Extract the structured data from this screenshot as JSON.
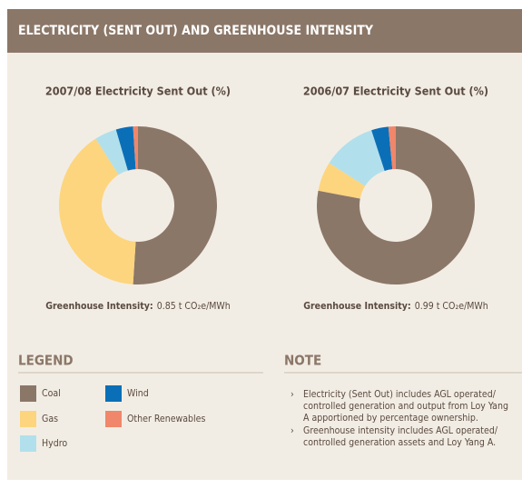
{
  "header": {
    "title": "ELECTRICITY (SENT OUT) AND GREENHOUSE INTENSITY"
  },
  "chart_data": [
    {
      "type": "pie",
      "title": "2007/08 Electricity Sent Out (%)",
      "categories": [
        "Coal",
        "Gas",
        "Hydro",
        "Wind",
        "Other Renewables"
      ],
      "values": [
        51,
        40,
        4.5,
        3.5,
        1
      ],
      "colors": [
        "#8b7768",
        "#fdd57e",
        "#b1e0ec",
        "#0b6fb8",
        "#f0866a"
      ],
      "intensity_label": "Greenhouse Intensity:",
      "intensity": 0.85,
      "intensity_unit": "t CO₂e/MWh"
    },
    {
      "type": "pie",
      "title": "2006/07 Electricity Sent Out (%)",
      "categories": [
        "Coal",
        "Gas",
        "Hydro",
        "Wind",
        "Other Renewables"
      ],
      "values": [
        78,
        6,
        11,
        3.5,
        1.5
      ],
      "colors": [
        "#8b7768",
        "#fdd57e",
        "#b1e0ec",
        "#0b6fb8",
        "#f0866a"
      ],
      "intensity_label": "Greenhouse Intensity:",
      "intensity": 0.99,
      "intensity_unit": "t CO₂e/MWh"
    }
  ],
  "legend": {
    "title": "LEGEND"
  },
  "note": {
    "title": "NOTE",
    "items": [
      "Electricity (Sent Out) includes AGL operated/ controlled generation and output from Loy Yang A apportioned by percentage ownership.",
      "Greenhouse intensity includes AGL operated/ controlled generation assets and Loy Yang A."
    ]
  }
}
